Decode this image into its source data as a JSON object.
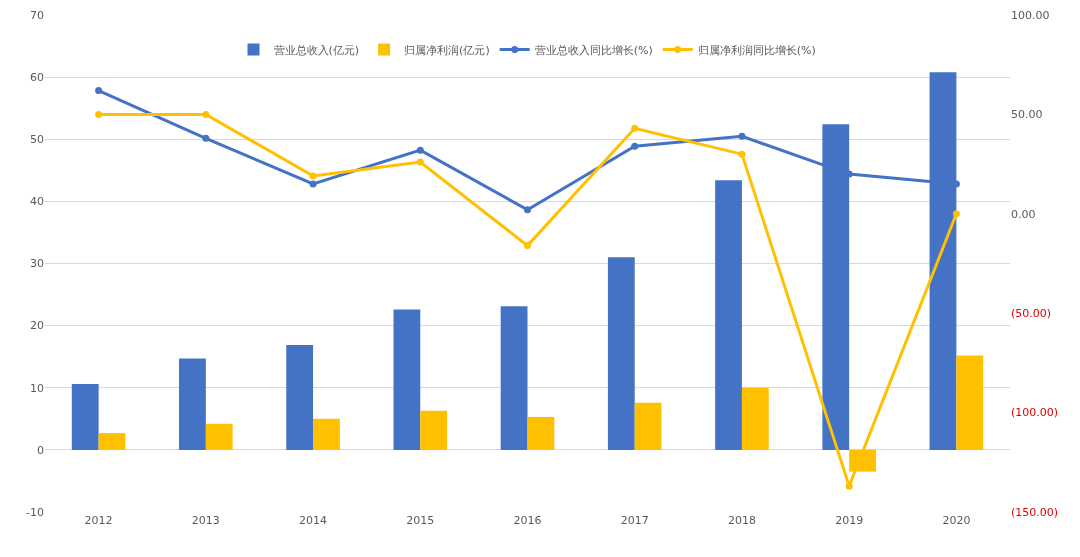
{
  "chart_data": {
    "type": "bar",
    "categories": [
      "2012",
      "2013",
      "2014",
      "2015",
      "2016",
      "2017",
      "2018",
      "2019",
      "2020"
    ],
    "series": [
      {
        "name": "营业总收入(亿元)",
        "color": "#4472c4",
        "values": [
          10.6,
          14.7,
          16.9,
          22.6,
          23.1,
          31.0,
          43.4,
          52.4,
          60.8
        ]
      },
      {
        "name": "归属净利润(亿元)",
        "color": "#ffc000",
        "values": [
          2.7,
          4.2,
          5.0,
          6.3,
          5.3,
          7.6,
          10.0,
          -3.5,
          15.2
        ]
      },
      {
        "name": "营业总收入同比增长(%)",
        "type": "line",
        "axis": "y2",
        "color": "#4472c4",
        "values": [
          62,
          38,
          15,
          32,
          2,
          34,
          39,
          20,
          15
        ]
      },
      {
        "name": "归属净利润同比增长(%)",
        "type": "line",
        "axis": "y2",
        "color": "#ffc000",
        "values": [
          50,
          50,
          19,
          26,
          -16,
          43,
          30,
          -137,
          0
        ]
      }
    ],
    "ylim": [
      -10,
      70
    ],
    "yticks": [
      -10,
      0,
      10,
      20,
      30,
      40,
      50,
      60,
      70
    ],
    "y2lim": [
      -150,
      100
    ],
    "y2ticks": [
      {
        "value": -150,
        "label": "(150.00)"
      },
      {
        "value": -100,
        "label": "(100.00)"
      },
      {
        "value": -50,
        "label": "(50.00)"
      },
      {
        "value": 0,
        "label": "0.00"
      },
      {
        "value": 50,
        "label": "50.00"
      },
      {
        "value": 100,
        "label": "100.00"
      }
    ],
    "grid": "y",
    "legend": "top",
    "marker": "circle",
    "line_style": "solid"
  }
}
